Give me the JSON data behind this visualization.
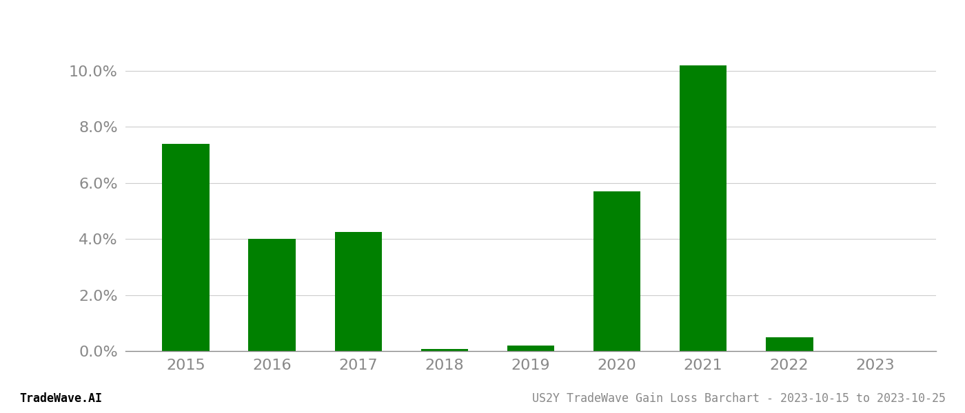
{
  "categories": [
    "2015",
    "2016",
    "2017",
    "2018",
    "2019",
    "2020",
    "2021",
    "2022",
    "2023"
  ],
  "values": [
    0.074,
    0.0401,
    0.0425,
    0.0008,
    0.002,
    0.057,
    0.102,
    0.005,
    0.0
  ],
  "bar_color": "#008000",
  "background_color": "#ffffff",
  "grid_color": "#cccccc",
  "axis_color": "#888888",
  "tick_color": "#888888",
  "ylabel_ticks": [
    0.0,
    0.02,
    0.04,
    0.06,
    0.08,
    0.1
  ],
  "ylim": [
    0,
    0.115
  ],
  "footer_left": "TradeWave.AI",
  "footer_right": "US2Y TradeWave Gain Loss Barchart - 2023-10-15 to 2023-10-25",
  "tick_fontsize": 16,
  "footer_fontsize": 12,
  "bar_width": 0.55
}
